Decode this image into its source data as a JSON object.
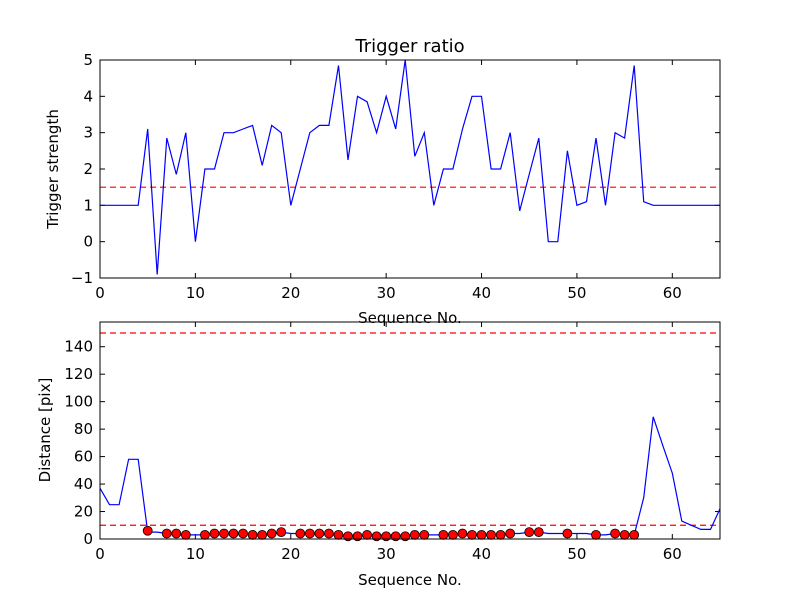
{
  "chart_data": [
    {
      "type": "line",
      "title": "Trigger ratio",
      "xlabel": "Sequence No.",
      "ylabel": "Trigger strength",
      "xlim": [
        0,
        65
      ],
      "ylim": [
        -1,
        5
      ],
      "xticks": [
        0,
        10,
        20,
        30,
        40,
        50,
        60
      ],
      "yticks": [
        -1,
        0,
        1,
        2,
        3,
        4,
        5
      ],
      "xtick_labels": [
        "0",
        "10",
        "20",
        "30",
        "40",
        "50",
        "60"
      ],
      "ytick_labels": [
        "−1",
        "0",
        "1",
        "2",
        "3",
        "4",
        "5"
      ],
      "grid": false,
      "series": [
        {
          "color": "#0000ff",
          "x": [
            0,
            1,
            2,
            3,
            4,
            5,
            6,
            7,
            8,
            9,
            10,
            11,
            12,
            13,
            14,
            15,
            16,
            17,
            18,
            19,
            20,
            21,
            22,
            23,
            24,
            25,
            26,
            27,
            28,
            29,
            30,
            31,
            32,
            33,
            34,
            35,
            36,
            37,
            38,
            39,
            40,
            41,
            42,
            43,
            44,
            45,
            46,
            47,
            48,
            49,
            50,
            51,
            52,
            53,
            54,
            55,
            56,
            57,
            58,
            59,
            60,
            61,
            62,
            63,
            64,
            65
          ],
          "y": [
            1,
            1,
            1,
            1,
            1,
            3.1,
            -0.9,
            2.85,
            1.85,
            3.0,
            0,
            2.0,
            2.0,
            3.0,
            3.0,
            3.1,
            3.2,
            2.1,
            3.2,
            3.0,
            1.0,
            2.0,
            3.0,
            3.2,
            3.2,
            4.85,
            2.25,
            4.0,
            3.85,
            3.0,
            4.0,
            3.1,
            5.0,
            2.35,
            3.0,
            1.0,
            2.0,
            2.0,
            3.1,
            4.0,
            4.0,
            2.0,
            2.0,
            3.0,
            0.85,
            1.85,
            2.85,
            0,
            0,
            2.5,
            1.0,
            1.1,
            2.85,
            1.0,
            3.0,
            2.85,
            4.85,
            1.1,
            1.0,
            1.0,
            1.0,
            1.0,
            1.0,
            1.0,
            1.0,
            1.0
          ]
        }
      ],
      "reference_lines": [
        {
          "orientation": "horizontal",
          "y": 1.5,
          "color": "#ff0000",
          "style": "dashed"
        }
      ]
    },
    {
      "type": "line",
      "title": "",
      "xlabel": "Sequence No.",
      "ylabel": "Distance [pix]",
      "xlim": [
        0,
        65
      ],
      "ylim": [
        0,
        158
      ],
      "xticks": [
        0,
        10,
        20,
        30,
        40,
        50,
        60
      ],
      "yticks": [
        0,
        20,
        40,
        60,
        80,
        100,
        120,
        140
      ],
      "xtick_labels": [
        "0",
        "10",
        "20",
        "30",
        "40",
        "50",
        "60"
      ],
      "ytick_labels": [
        "0",
        "20",
        "40",
        "60",
        "80",
        "100",
        "120",
        "140"
      ],
      "grid": false,
      "series": [
        {
          "color": "#0000ff",
          "x": [
            0,
            1,
            2,
            3,
            4,
            5,
            6,
            7,
            8,
            9,
            10,
            11,
            12,
            13,
            14,
            15,
            16,
            17,
            18,
            19,
            20,
            21,
            22,
            23,
            24,
            25,
            26,
            27,
            28,
            29,
            30,
            31,
            32,
            33,
            34,
            35,
            36,
            37,
            38,
            39,
            40,
            41,
            42,
            43,
            44,
            45,
            46,
            47,
            48,
            49,
            50,
            51,
            52,
            53,
            54,
            55,
            56,
            57,
            58,
            59,
            60,
            61,
            62,
            63,
            64,
            65
          ],
          "y": [
            37,
            25,
            25,
            58,
            58,
            5,
            5,
            4,
            3,
            3,
            3,
            3,
            4,
            4,
            4,
            4,
            3,
            3,
            4,
            5,
            4,
            4,
            4,
            4,
            3,
            3,
            2,
            2,
            3,
            2,
            2,
            2,
            2,
            3,
            3,
            3,
            3,
            4,
            4,
            3,
            3,
            3,
            3,
            4,
            4,
            5,
            5,
            4,
            4,
            4,
            4,
            4,
            3,
            3,
            4,
            3,
            3,
            30,
            89,
            68,
            48,
            13,
            10,
            7,
            7,
            22
          ]
        },
        {
          "color": "#ff0000",
          "marker": "circle",
          "x": [
            5,
            7,
            8,
            9,
            11,
            12,
            13,
            14,
            15,
            16,
            17,
            18,
            19,
            21,
            22,
            23,
            24,
            25,
            26,
            27,
            28,
            29,
            30,
            31,
            32,
            33,
            34,
            36,
            37,
            38,
            39,
            40,
            41,
            42,
            43,
            45,
            46,
            49,
            52,
            54,
            55,
            56
          ],
          "y": [
            6,
            4,
            4,
            3,
            3,
            4,
            4,
            4,
            4,
            3,
            3,
            4,
            5,
            4,
            4,
            4,
            4,
            3,
            2,
            2,
            3,
            2,
            2,
            2,
            2,
            3,
            3,
            3,
            3,
            4,
            3,
            3,
            3,
            3,
            4,
            5,
            5,
            4,
            3,
            4,
            3,
            3
          ]
        }
      ],
      "reference_lines": [
        {
          "orientation": "horizontal",
          "y": 10,
          "color": "#ff0000",
          "style": "dashed"
        },
        {
          "orientation": "horizontal",
          "y": 150,
          "color": "#ff0000",
          "style": "dashed"
        }
      ]
    }
  ]
}
